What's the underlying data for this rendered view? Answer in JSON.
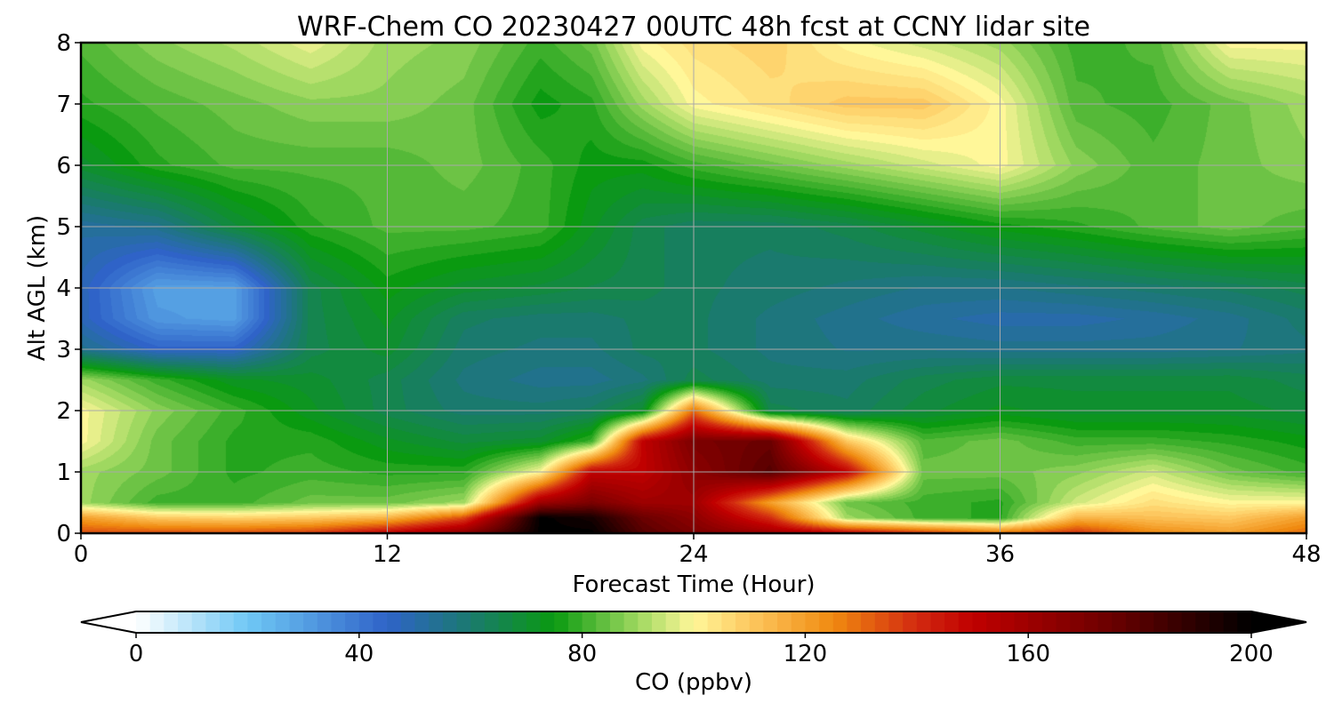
{
  "chart_data": {
    "type": "heatmap",
    "title": "WRF-Chem CO  20230427 00UTC 48h fcst at CCNY lidar site",
    "xlabel": "Forecast Time (Hour)",
    "ylabel": "Alt AGL (km)",
    "xlim": [
      0,
      48
    ],
    "ylim": [
      0,
      8
    ],
    "x_ticks": [
      0,
      12,
      24,
      36,
      48
    ],
    "y_ticks": [
      0,
      1,
      2,
      3,
      4,
      5,
      6,
      7,
      8
    ],
    "grid": true,
    "colorbar": {
      "label": "CO  (ppbv)",
      "range": [
        0,
        200
      ],
      "ticks": [
        0,
        40,
        80,
        120,
        160,
        200
      ],
      "extend": "both",
      "stops": [
        {
          "value": 0,
          "color": "#ffffff"
        },
        {
          "value": 20,
          "color": "#6fc8f5"
        },
        {
          "value": 45,
          "color": "#2f63c8"
        },
        {
          "value": 60,
          "color": "#1a7a6e"
        },
        {
          "value": 75,
          "color": "#0a9a10"
        },
        {
          "value": 90,
          "color": "#9fd860"
        },
        {
          "value": 100,
          "color": "#fff799"
        },
        {
          "value": 110,
          "color": "#fdc860"
        },
        {
          "value": 125,
          "color": "#f08a10"
        },
        {
          "value": 140,
          "color": "#d22a10"
        },
        {
          "value": 150,
          "color": "#c00000"
        },
        {
          "value": 175,
          "color": "#6a0000"
        },
        {
          "value": 200,
          "color": "#000000"
        }
      ]
    },
    "field": {
      "x": [
        0,
        3,
        6,
        9,
        12,
        15,
        18,
        20,
        22,
        24,
        27,
        30,
        33,
        36,
        39,
        42,
        45,
        48
      ],
      "y": [
        0,
        0.25,
        0.5,
        1,
        1.5,
        2,
        2.5,
        3,
        3.5,
        4,
        5,
        6,
        7,
        8
      ],
      "values": [
        [
          135,
          135,
          135,
          138,
          150,
          165,
          200,
          200,
          180,
          170,
          160,
          150,
          140,
          130,
          140,
          125,
          120,
          130
        ],
        [
          120,
          110,
          108,
          110,
          115,
          135,
          200,
          195,
          175,
          165,
          140,
          90,
          80,
          78,
          115,
          112,
          110,
          120
        ],
        [
          90,
          80,
          80,
          85,
          85,
          90,
          160,
          170,
          160,
          160,
          120,
          85,
          80,
          78,
          95,
          105,
          100,
          100
        ],
        [
          90,
          85,
          78,
          80,
          78,
          78,
          100,
          150,
          150,
          165,
          180,
          150,
          85,
          85,
          88,
          95,
          85,
          80
        ],
        [
          100,
          85,
          78,
          78,
          72,
          68,
          70,
          80,
          150,
          170,
          175,
          110,
          82,
          85,
          80,
          80,
          78,
          75
        ],
        [
          100,
          88,
          80,
          72,
          65,
          60,
          60,
          62,
          70,
          130,
          65,
          62,
          68,
          72,
          70,
          70,
          70,
          68
        ],
        [
          90,
          80,
          72,
          70,
          65,
          58,
          55,
          55,
          58,
          65,
          60,
          60,
          65,
          68,
          68,
          68,
          68,
          65
        ],
        [
          55,
          45,
          45,
          65,
          70,
          60,
          58,
          58,
          62,
          62,
          58,
          56,
          56,
          55,
          55,
          55,
          56,
          58
        ],
        [
          48,
          32,
          30,
          65,
          72,
          62,
          60,
          60,
          62,
          62,
          58,
          55,
          52,
          50,
          50,
          52,
          55,
          60
        ],
        [
          48,
          30,
          30,
          65,
          75,
          70,
          68,
          66,
          65,
          62,
          60,
          58,
          56,
          56,
          58,
          60,
          62,
          65
        ],
        [
          52,
          55,
          68,
          78,
          82,
          82,
          80,
          72,
          65,
          62,
          62,
          65,
          70,
          75,
          78,
          82,
          85,
          82
        ],
        [
          70,
          78,
          82,
          82,
          82,
          85,
          80,
          75,
          75,
          80,
          85,
          90,
          95,
          100,
          88,
          82,
          85,
          88
        ],
        [
          78,
          82,
          85,
          88,
          88,
          85,
          75,
          78,
          90,
          100,
          105,
          110,
          110,
          100,
          82,
          80,
          85,
          90
        ],
        [
          82,
          88,
          92,
          98,
          90,
          88,
          80,
          85,
          100,
          105,
          108,
          100,
          95,
          90,
          80,
          82,
          100,
          100
        ]
      ]
    }
  }
}
